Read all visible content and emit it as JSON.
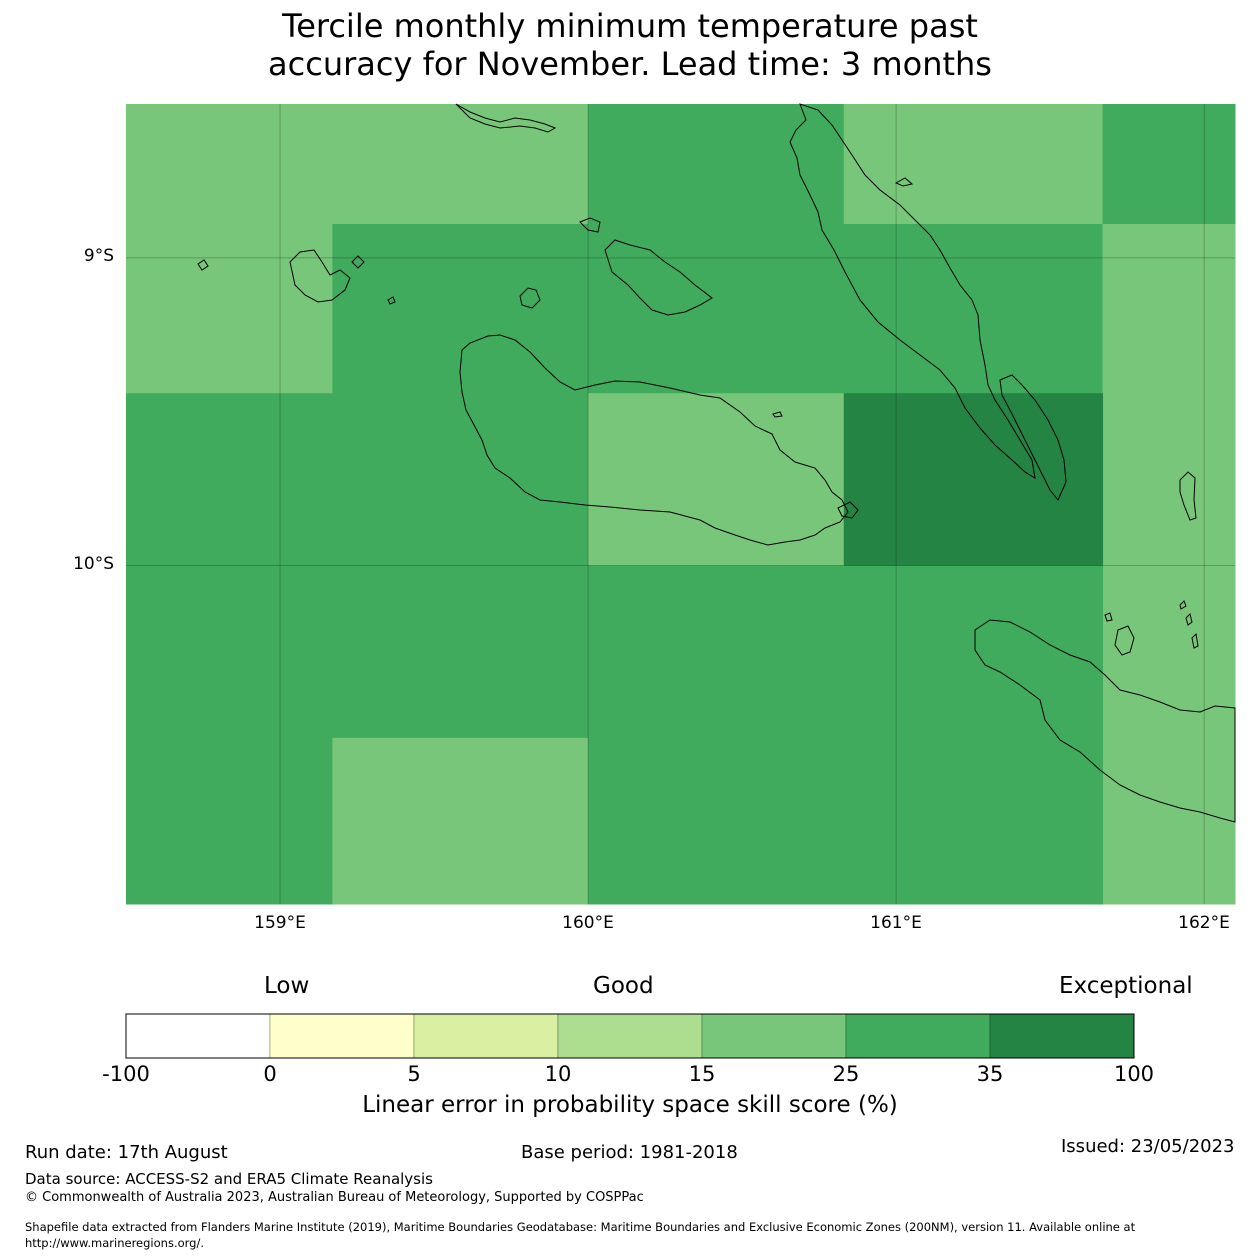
{
  "title_line1": "Tercile monthly minimum temperature past",
  "title_line2": "accuracy for November. Lead time: 3 months",
  "map": {
    "lon_range": [
      158.5,
      162.1
    ],
    "lat_range": [
      -8.5,
      -11.1
    ],
    "lat_ticks": [
      {
        "value": -9,
        "label": "9°S"
      },
      {
        "value": -10,
        "label": "10°S"
      }
    ],
    "lon_ticks": [
      {
        "value": 159,
        "label": "159°E"
      },
      {
        "value": 160,
        "label": "160°E"
      },
      {
        "value": 161,
        "label": "161°E"
      },
      {
        "value": 162,
        "label": "162°E"
      }
    ],
    "grid_cells": [
      {
        "lon": [
          158.5,
          160.0
        ],
        "lat": [
          -8.5,
          -8.89
        ],
        "category": 4
      },
      {
        "lon": [
          158.5,
          159.17
        ],
        "lat": [
          -8.89,
          -9.44
        ],
        "category": 4
      },
      {
        "lon": [
          159.17,
          160.0
        ],
        "lat": [
          -8.89,
          -9.44
        ],
        "category": 5
      },
      {
        "lon": [
          160.0,
          160.83
        ],
        "lat": [
          -8.5,
          -9.44
        ],
        "category": 5
      },
      {
        "lon": [
          160.83,
          161.67
        ],
        "lat": [
          -8.5,
          -8.89
        ],
        "category": 4
      },
      {
        "lon": [
          160.83,
          161.67
        ],
        "lat": [
          -8.89,
          -9.44
        ],
        "category": 5
      },
      {
        "lon": [
          161.67,
          162.1
        ],
        "lat": [
          -8.5,
          -8.89
        ],
        "category": 5
      },
      {
        "lon": [
          161.67,
          162.1
        ],
        "lat": [
          -8.89,
          -11.1
        ],
        "category": 4
      },
      {
        "lon": [
          158.5,
          160.0
        ],
        "lat": [
          -9.44,
          -10.0
        ],
        "category": 5
      },
      {
        "lon": [
          160.0,
          160.83
        ],
        "lat": [
          -9.44,
          -10.0
        ],
        "category": 4
      },
      {
        "lon": [
          160.83,
          161.67
        ],
        "lat": [
          -9.44,
          -10.0
        ],
        "category": 6
      },
      {
        "lon": [
          158.5,
          159.17
        ],
        "lat": [
          -10.0,
          -11.1
        ],
        "category": 5
      },
      {
        "lon": [
          159.17,
          160.0
        ],
        "lat": [
          -10.0,
          -10.56
        ],
        "category": 5
      },
      {
        "lon": [
          159.17,
          160.0
        ],
        "lat": [
          -10.56,
          -11.1
        ],
        "category": 4
      },
      {
        "lon": [
          160.0,
          161.67
        ],
        "lat": [
          -10.0,
          -11.1
        ],
        "category": 5
      }
    ]
  },
  "colorbar": {
    "category_labels": [
      "Low",
      "Good",
      "Exceptional"
    ],
    "bins": [
      {
        "range": [
          -100,
          0
        ],
        "color": "#ffffff"
      },
      {
        "range": [
          0,
          5
        ],
        "color": "#ffffcc"
      },
      {
        "range": [
          5,
          10
        ],
        "color": "#d9f0a3"
      },
      {
        "range": [
          10,
          15
        ],
        "color": "#addd8e"
      },
      {
        "range": [
          15,
          25
        ],
        "color": "#78c679"
      },
      {
        "range": [
          25,
          35
        ],
        "color": "#41ab5d"
      },
      {
        "range": [
          35,
          100
        ],
        "color": "#238443"
      }
    ],
    "tick_labels": [
      "-100",
      "0",
      "5",
      "10",
      "15",
      "25",
      "35",
      "100"
    ],
    "label": "Linear error in probability space skill score (%)"
  },
  "footer": {
    "run_date": "Run date: 17th August",
    "base_period": "Base period: 1981-2018",
    "issued": "Issued: 23/05/2023",
    "data_source": "Data source: ACCESS-S2 and ERA5 Climate Reanalysis",
    "copyright": "© Commonwealth of Australia 2023, Australian Bureau of Meteorology, Supported by COSPPac",
    "shapefile_line1": "Shapefile data extracted from Flanders Marine Institute (2019), Maritime Boundaries Geodatabase: Maritime Boundaries and Exclusive Economic Zones (200NM), version 11. Available online at",
    "shapefile_line2": "http://www.marineregions.org/."
  }
}
